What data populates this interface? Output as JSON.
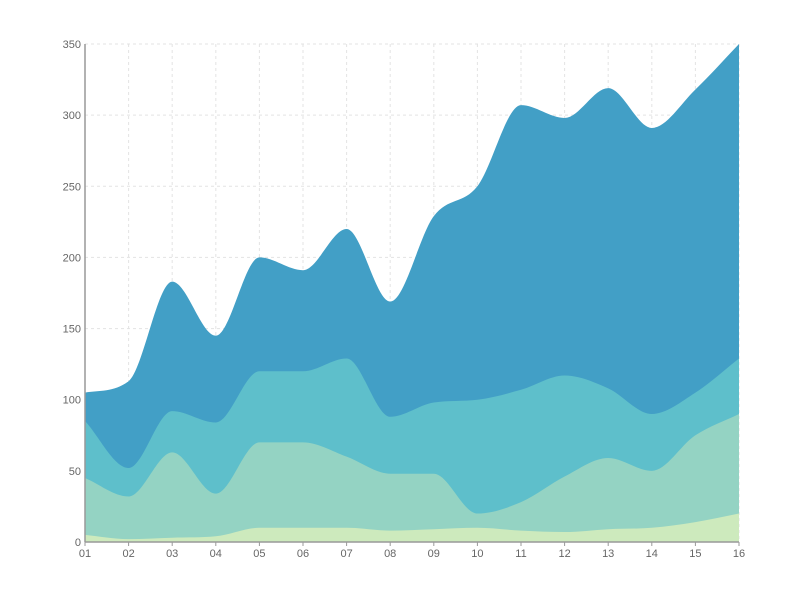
{
  "chart_data": {
    "type": "area",
    "stacked": true,
    "smooth": true,
    "title": "",
    "xlabel": "",
    "ylabel": "",
    "categories": [
      "01",
      "02",
      "03",
      "04",
      "05",
      "06",
      "07",
      "08",
      "09",
      "10",
      "11",
      "12",
      "13",
      "14",
      "15",
      "16"
    ],
    "ylim": [
      0,
      350
    ],
    "yticks": [
      0,
      50,
      100,
      150,
      200,
      250,
      300,
      350
    ],
    "grid": true,
    "legend": "none",
    "series": [
      {
        "color": "#cdeabd",
        "values": [
          5,
          2,
          3,
          4,
          10,
          10,
          10,
          8,
          9,
          10,
          8,
          7,
          9,
          10,
          14,
          20
        ]
      },
      {
        "color": "#94d3c3",
        "values": [
          40,
          30,
          60,
          30,
          60,
          60,
          50,
          40,
          39,
          10,
          20,
          39,
          50,
          40,
          61,
          70
        ]
      },
      {
        "color": "#5ebfcb",
        "values": [
          40,
          20,
          29,
          50,
          50,
          50,
          69,
          40,
          50,
          80,
          79,
          71,
          49,
          40,
          30,
          39
        ]
      },
      {
        "color": "#429fc6",
        "values": [
          20,
          61,
          91,
          61,
          80,
          71,
          91,
          81,
          131,
          150,
          200,
          181,
          211,
          201,
          213,
          221
        ]
      }
    ]
  }
}
